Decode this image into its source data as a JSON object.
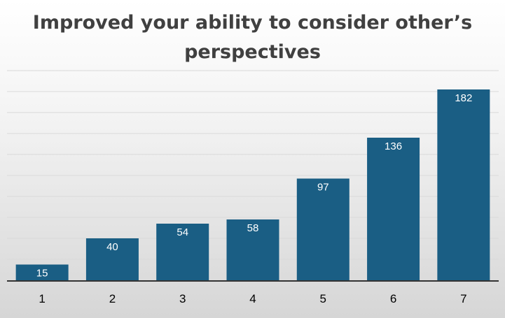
{
  "chart_data": {
    "type": "bar",
    "title_lines": [
      "Improved your ability to consider other’s",
      "perspectives"
    ],
    "categories": [
      "1",
      "2",
      "3",
      "4",
      "5",
      "6",
      "7"
    ],
    "values": [
      15,
      40,
      54,
      58,
      97,
      136,
      182
    ],
    "data_labels": [
      "15",
      "40",
      "54",
      "58",
      "97",
      "136",
      "182"
    ],
    "xlabel": "",
    "ylabel": "",
    "ylim": [
      0,
      200
    ],
    "grid": true,
    "legend": "none",
    "colors": {
      "bar": "#1a5e84",
      "gridline": "#d9d9d9",
      "axis": "#333333",
      "label_text": "#ffffff",
      "tick_text": "#000000",
      "title_text": "#404040"
    }
  }
}
